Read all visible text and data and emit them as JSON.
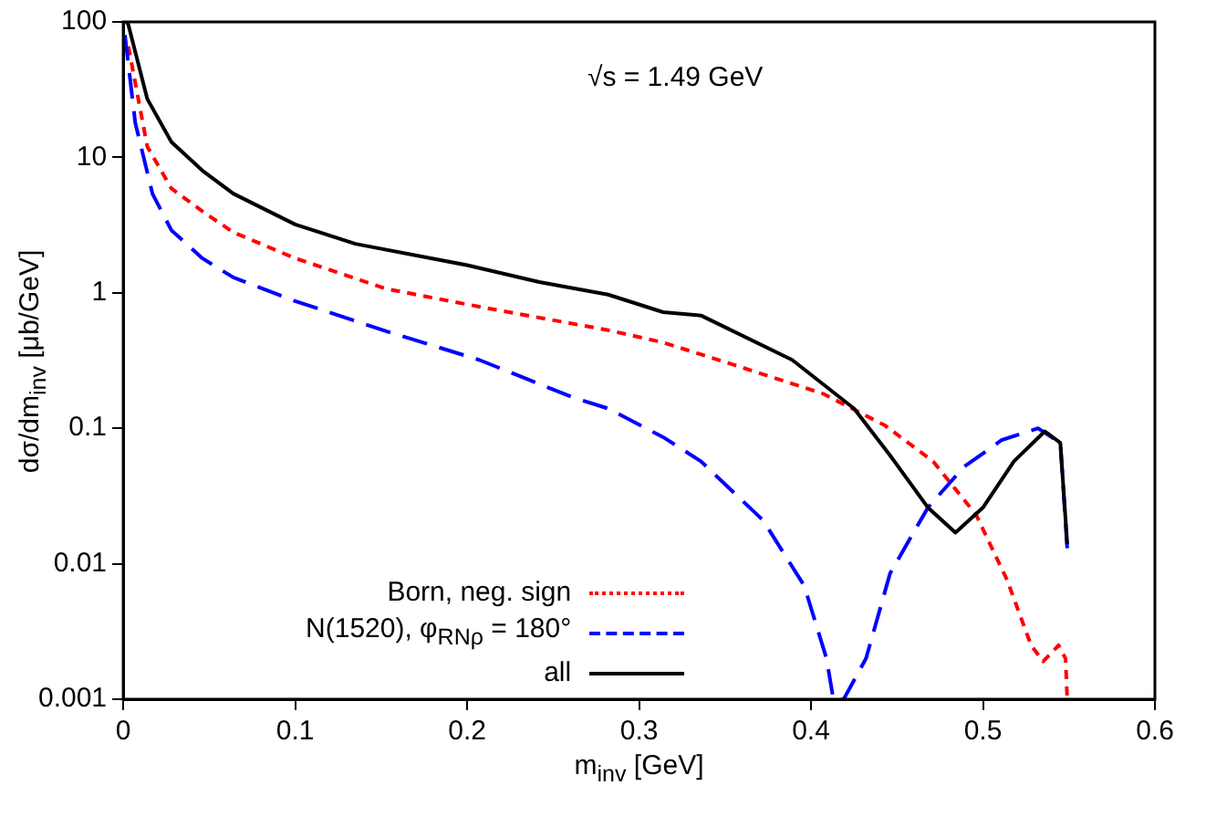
{
  "chart_data": {
    "type": "line",
    "xlabel": "m$_{inv}$ [GeV]",
    "ylabel": "dσ/dm$_{inv}$ [μb/GeV]",
    "annotations": [
      "√s = 1.49 GeV"
    ],
    "xlim": [
      0,
      0.6
    ],
    "xticks": [
      0,
      0.1,
      0.2,
      0.3,
      0.4,
      0.5,
      0.6
    ],
    "ylim": [
      0.001,
      100
    ],
    "yticks": [
      0.001,
      0.01,
      0.1,
      1,
      10,
      100
    ],
    "log": "y",
    "grid": false,
    "legend": "bottom left",
    "marker": "none",
    "series": [
      {
        "name": "Born, neg. sign",
        "color": "#ff0000",
        "line_style": "dotted",
        "x": [
          0.003,
          0.014,
          0.028,
          0.046,
          0.064,
          0.1,
          0.153,
          0.207,
          0.282,
          0.314,
          0.353,
          0.407,
          0.443,
          0.471,
          0.496,
          0.514,
          0.528,
          0.535,
          0.544,
          0.548,
          0.549
        ],
        "values": [
          66,
          12,
          5.9,
          4,
          2.8,
          1.8,
          1.07,
          0.79,
          0.53,
          0.43,
          0.3,
          0.18,
          0.105,
          0.057,
          0.023,
          0.0076,
          0.0025,
          0.0019,
          0.0025,
          0.002,
          0.001
        ]
      },
      {
        "name": "N(1520), φ$_{RNρ}$ = 180°",
        "color": "#0000ff",
        "line_style": "dashed",
        "x": [
          0.001,
          0.007,
          0.017,
          0.028,
          0.046,
          0.064,
          0.1,
          0.153,
          0.207,
          0.261,
          0.282,
          0.314,
          0.336,
          0.372,
          0.396,
          0.409,
          0.413,
          0.419,
          0.432,
          0.446,
          0.468,
          0.489,
          0.511,
          0.532,
          0.545,
          0.549
        ],
        "values": [
          80,
          18,
          5.4,
          2.9,
          1.8,
          1.3,
          0.87,
          0.52,
          0.32,
          0.17,
          0.14,
          0.086,
          0.057,
          0.021,
          0.0069,
          0.002,
          0.001,
          0.001,
          0.002,
          0.0085,
          0.026,
          0.052,
          0.082,
          0.1,
          0.078,
          0.013
        ]
      },
      {
        "name": "all",
        "color": "#000000",
        "line_style": "solid",
        "x": [
          0.002,
          0.003,
          0.014,
          0.028,
          0.046,
          0.064,
          0.1,
          0.135,
          0.2,
          0.242,
          0.282,
          0.314,
          0.336,
          0.389,
          0.425,
          0.446,
          0.468,
          0.484,
          0.5,
          0.518,
          0.536,
          0.545,
          0.549
        ],
        "values": [
          100,
          95,
          27,
          13,
          8,
          5.4,
          3.2,
          2.3,
          1.6,
          1.2,
          0.97,
          0.72,
          0.68,
          0.32,
          0.14,
          0.063,
          0.026,
          0.017,
          0.026,
          0.057,
          0.095,
          0.078,
          0.014
        ]
      }
    ]
  }
}
